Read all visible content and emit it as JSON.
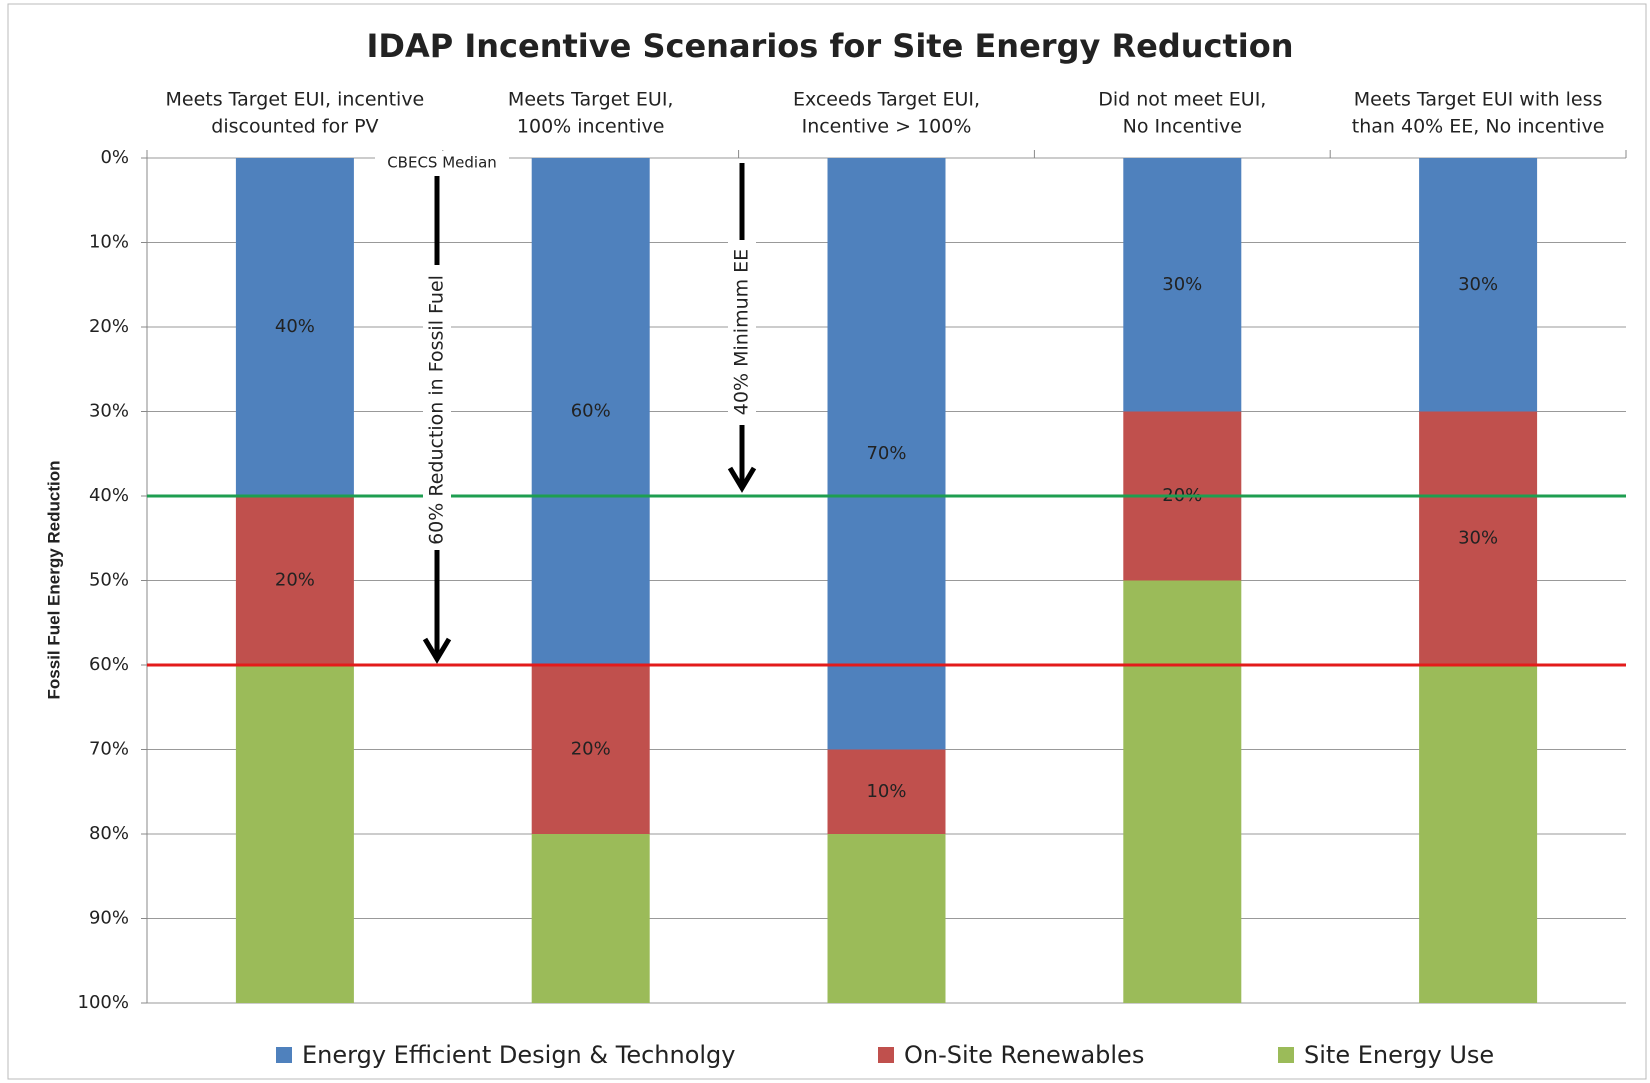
{
  "chart_data": {
    "type": "stacked_bar",
    "title": "IDAP Incentive Scenarios for Site Energy Reduction",
    "y_label": "Fossil Fuel Energy Reduction",
    "categories": [
      [
        "Meets Target EUI, incentive",
        "discounted for PV"
      ],
      [
        "Meets Target EUI,",
        "100% incentive"
      ],
      [
        "Exceeds Target EUI,",
        "Incentive > 100%"
      ],
      [
        "Did not meet EUI,",
        "No Incentive"
      ],
      [
        "Meets Target EUI with less",
        "than 40% EE, No incentive"
      ]
    ],
    "series": [
      {
        "name": "Energy Efficient Design & Technolgy",
        "color": "#4f81bd",
        "values": [
          40,
          60,
          70,
          30,
          30
        ],
        "value_labels": [
          "40%",
          "60%",
          "70%",
          "30%",
          "30%"
        ]
      },
      {
        "name": "On-Site Renewables",
        "color": "#c0504d",
        "values": [
          20,
          20,
          10,
          20,
          30
        ],
        "value_labels": [
          "20%",
          "20%",
          "10%",
          "20%",
          "30%"
        ]
      },
      {
        "name": "Site Energy Use",
        "color": "#9bbb59",
        "values": [
          40,
          20,
          20,
          50,
          40
        ]
      }
    ],
    "ylim": [
      0,
      100
    ],
    "y_inverted": true,
    "yticks": [
      {
        "value": 0,
        "label": "0%"
      },
      {
        "value": 10,
        "label": "10%"
      },
      {
        "value": 20,
        "label": "20%"
      },
      {
        "value": 30,
        "label": "30%"
      },
      {
        "value": 40,
        "label": "40%"
      },
      {
        "value": 50,
        "label": "50%"
      },
      {
        "value": 60,
        "label": "60%"
      },
      {
        "value": 70,
        "label": "70%"
      },
      {
        "value": 80,
        "label": "80%"
      },
      {
        "value": 90,
        "label": "90%"
      },
      {
        "value": 100,
        "label": "100%"
      }
    ],
    "grid": true,
    "reference_lines": [
      {
        "value": 40,
        "color": "#1e9e50"
      },
      {
        "value": 60,
        "color": "#e31b1b"
      }
    ],
    "annotations": [
      "CBECS Median",
      "60% Reduction in Fossil Fuel",
      "40% Minimum EE"
    ],
    "legend": "bottom"
  }
}
